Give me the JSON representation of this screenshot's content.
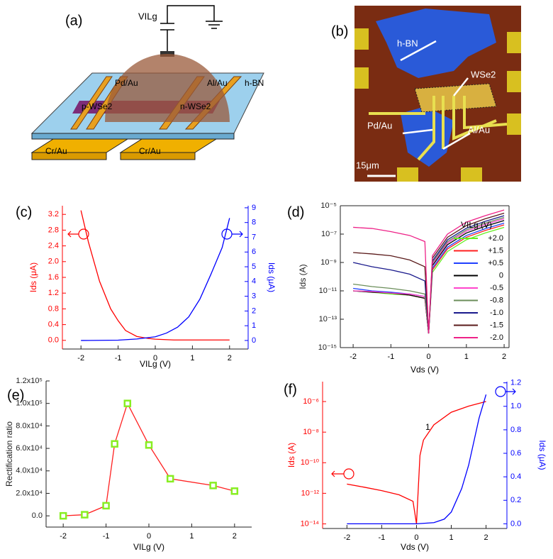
{
  "panel_a": {
    "label": "(a)",
    "source": "VILg",
    "texts": [
      "Pd/Au",
      "Al/Au",
      "h-BN",
      "p-WSe2",
      "n-WSe2",
      "Cr/Au",
      "Cr/Au"
    ]
  },
  "panel_b": {
    "label": "(b)",
    "texts": [
      "h-BN",
      "WSe2",
      "Pd/Au",
      "Al/Au"
    ],
    "scale_bar": "15μm"
  },
  "chart_data": [
    {
      "type": "line",
      "label": "(c)",
      "xlabel": "VILg (V)",
      "ylabel": "Ids (μA)",
      "y2label": "Ids (μA)",
      "xlim": [
        -2.5,
        2.5
      ],
      "xticks": [
        -2,
        -1,
        0,
        1,
        2
      ],
      "ylim": [
        -0.22,
        3.42
      ],
      "yticks": [
        {
          "value": 0,
          "label": "0.0"
        },
        0.4,
        0.8,
        1.2,
        1.6,
        {
          "value": 2,
          "label": "2.0"
        },
        2.4,
        2.8,
        3.2
      ],
      "y2lim": [
        -0.58,
        9.14
      ],
      "y2ticks": [
        0,
        1,
        2,
        3,
        4,
        5,
        6,
        7,
        8,
        9
      ],
      "ycolor": "#ff0000",
      "y2color": "#0000ff",
      "series": [
        {
          "color": "#ff0000",
          "x": [
            -2,
            -1.8,
            -1.5,
            -1.2,
            -1,
            -0.8,
            -0.5,
            -0.2,
            0,
            0.5,
            1,
            1.5,
            2
          ],
          "values": [
            3.3,
            2.5,
            1.5,
            0.8,
            0.5,
            0.25,
            0.1,
            0.05,
            0.03,
            0.01,
            0.01,
            0.01,
            0.01
          ]
        },
        {
          "color": "#0000ff",
          "axis": "y2",
          "x": [
            -2,
            -1,
            -0.5,
            0,
            0.3,
            0.6,
            0.9,
            1.2,
            1.5,
            1.8,
            2
          ],
          "values": [
            0,
            0.02,
            0.1,
            0.25,
            0.5,
            0.9,
            1.6,
            2.8,
            4.5,
            6.3,
            8.3
          ]
        }
      ]
    },
    {
      "type": "line",
      "label": "(d)",
      "xlabel": "Vds (V)",
      "ylabel": "Ids (A)",
      "ylog": true,
      "xlim": [
        -2.34,
        2.13
      ],
      "xticks": [
        -2,
        -1,
        0,
        1,
        2
      ],
      "ylim": [
        1e-15,
        1e-05
      ],
      "yticks": [
        {
          "value": 1e-05,
          "label": "10⁻⁵"
        },
        {
          "value": 1e-07,
          "label": "10⁻⁷"
        },
        {
          "value": 1e-09,
          "label": "10⁻⁹"
        },
        {
          "value": 1e-11,
          "label": "10⁻¹¹"
        },
        {
          "value": 1e-13,
          "label": "10⁻¹³"
        },
        {
          "value": 1e-15,
          "label": "10⁻¹⁵"
        }
      ],
      "legend": "right",
      "legend_title": "VILg (V)",
      "x": [
        -2,
        -1.5,
        -1,
        -0.5,
        -0.1,
        0,
        0.1,
        0.5,
        1,
        1.5,
        2
      ],
      "series": [
        {
          "name": "+2.0",
          "color": "#66ee22",
          "values": [
            1e-11,
            8e-12,
            6e-12,
            5e-12,
            3e-12,
            1e-14,
            2e-10,
            6e-09,
            4e-08,
            1.2e-07,
            3e-07
          ]
        },
        {
          "name": "+1.5",
          "color": "#ff2020",
          "values": [
            1e-11,
            9e-12,
            7e-12,
            5e-12,
            3e-12,
            1e-14,
            3e-10,
            9e-09,
            6e-08,
            1.8e-07,
            4.5e-07
          ]
        },
        {
          "name": "+0.5",
          "color": "#2040ff",
          "values": [
            1.5e-11,
            1e-11,
            8e-12,
            6e-12,
            4e-12,
            1e-14,
            4e-10,
            1.2e-08,
            8e-08,
            2.4e-07,
            6e-07
          ]
        },
        {
          "name": "0",
          "color": "#000000",
          "values": [
            1e-11,
            8e-12,
            7e-12,
            5e-12,
            3e-12,
            1e-14,
            6e-10,
            1.8e-08,
            1.2e-07,
            3.6e-07,
            9e-07
          ]
        },
        {
          "name": "-0.5",
          "color": "#ff44cc",
          "values": [
            1e-11,
            9e-12,
            7e-12,
            6e-12,
            4e-12,
            1e-14,
            8e-10,
            2.4e-08,
            1.6e-07,
            4.8e-07,
            1.2e-06
          ]
        },
        {
          "name": "-0.8",
          "color": "#6b8e5a",
          "values": [
            3e-11,
            2e-11,
            1.5e-11,
            1e-11,
            6e-12,
            1e-14,
            1e-09,
            3e-08,
            2e-07,
            6e-07,
            1.5e-06
          ]
        },
        {
          "name": "-1.0",
          "color": "#1a1a8c",
          "values": [
            1e-09,
            5e-10,
            3e-10,
            1.5e-10,
            5e-11,
            1e-14,
            1.3e-09,
            4e-08,
            2.6e-07,
            8e-07,
            2e-06
          ]
        },
        {
          "name": "-1.5",
          "color": "#5a1a1a",
          "values": [
            5e-09,
            4e-09,
            3e-09,
            1.5e-09,
            5e-10,
            1e-14,
            2e-09,
            6e-08,
            4e-07,
            1.2e-06,
            3e-06
          ]
        },
        {
          "name": "-2.0",
          "color": "#ee2288",
          "values": [
            3e-07,
            2.5e-07,
            1.5e-07,
            8e-08,
            3e-08,
            1e-14,
            3e-09,
            1e-07,
            7e-07,
            2e-06,
            5e-06
          ]
        }
      ]
    },
    {
      "type": "line",
      "label": "(e)",
      "xlabel": "VILg (V)",
      "ylabel": "Rectification ratio",
      "xlim": [
        -2.4,
        2.4
      ],
      "xticks": [
        -2,
        -1,
        0,
        1,
        2
      ],
      "ylim": [
        -10000,
        120000
      ],
      "yticks": [
        {
          "value": 0,
          "label": "0.0"
        },
        {
          "value": 20000,
          "label": "2.0x10⁴"
        },
        {
          "value": 40000,
          "label": "4.0x10⁴"
        },
        {
          "value": 60000,
          "label": "6.0x10⁴"
        },
        {
          "value": 80000,
          "label": "8.0x10⁴"
        },
        {
          "value": 100000,
          "label": "1.0x10⁵"
        },
        {
          "value": 120000,
          "label": "1.2x10⁵"
        }
      ],
      "x": [
        -2,
        -1.5,
        -1,
        -0.8,
        -0.5,
        0,
        0.5,
        1.5,
        2
      ],
      "series": [
        {
          "color": "#ff2020",
          "marker": "square",
          "marker_color": "#88ee22",
          "values": [
            0,
            1000,
            9000,
            64000,
            100000,
            63000,
            33000,
            27000,
            22000
          ]
        }
      ]
    },
    {
      "type": "line",
      "label": "(f)",
      "xlabel": "Vds (V)",
      "ylabel": "Ids (A)",
      "y2label": "Ids (μA)",
      "ylog": true,
      "annotation": "1",
      "xlim": [
        -2.7,
        2.6
      ],
      "xticks": [
        -2,
        -1,
        0,
        1,
        2
      ],
      "ylim": [
        5e-15,
        2e-05
      ],
      "yticks": [
        {
          "value": 1e-06,
          "label": "10⁻⁶"
        },
        {
          "value": 1e-08,
          "label": "10⁻⁸"
        },
        {
          "value": 1e-10,
          "label": "10⁻¹⁰"
        },
        {
          "value": 1e-12,
          "label": "10⁻¹²"
        },
        {
          "value": 1e-14,
          "label": "10⁻¹⁴"
        }
      ],
      "y2lim": [
        -0.04,
        1.21
      ],
      "y2ticks": [
        {
          "value": 0,
          "label": "0.0"
        },
        0.2,
        0.4,
        0.6,
        0.8,
        {
          "value": 1,
          "label": "1.0"
        },
        1.2
      ],
      "ycolor": "#ff0000",
      "y2color": "#0000ff",
      "series": [
        {
          "color": "#ff0000",
          "x": [
            -2,
            -1.5,
            -1,
            -0.5,
            -0.1,
            0,
            0.1,
            0.2,
            0.5,
            1,
            1.5,
            2
          ],
          "values": [
            4e-12,
            2.5e-12,
            1.5e-12,
            8e-13,
            3e-13,
            1e-14,
            3e-10,
            3e-09,
            3e-08,
            2e-07,
            5e-07,
            1e-06
          ]
        },
        {
          "color": "#0000ff",
          "axis": "y2",
          "x": [
            -2,
            0,
            0.5,
            0.8,
            1,
            1.3,
            1.5,
            1.8,
            2
          ],
          "values": [
            0,
            0,
            0.01,
            0.04,
            0.1,
            0.3,
            0.5,
            0.9,
            1.1
          ]
        }
      ]
    }
  ]
}
